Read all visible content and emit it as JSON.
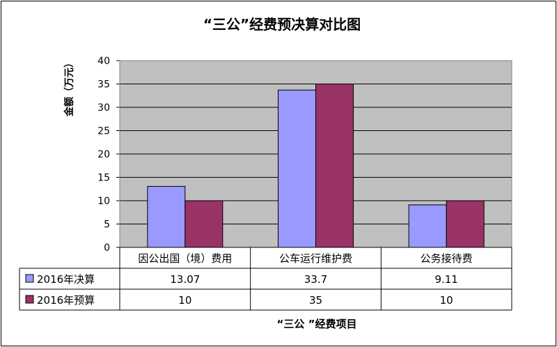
{
  "chart_data": {
    "type": "bar",
    "title": "“三公”经费预决算对比图",
    "ylabel": "金额（万元）",
    "xlabel": "“三公 ”经费项目",
    "ylim": [
      0,
      40
    ],
    "yticks": [
      0,
      5,
      10,
      15,
      20,
      25,
      30,
      35,
      40
    ],
    "categories": [
      "因公出国（境）费用",
      "公车运行维护费",
      "公务接待费"
    ],
    "series": [
      {
        "name": "2016年决算",
        "color": "#9999ff",
        "values": [
          13.07,
          33.7,
          9.11
        ],
        "labels": [
          "13.07",
          "33.7",
          "9.11"
        ]
      },
      {
        "name": "2016年预算",
        "color": "#993366",
        "values": [
          10,
          35,
          10
        ],
        "labels": [
          "10",
          "35",
          "10"
        ]
      }
    ],
    "plot_background": "#c0c0c0",
    "grid": true,
    "legend": "data-table"
  }
}
